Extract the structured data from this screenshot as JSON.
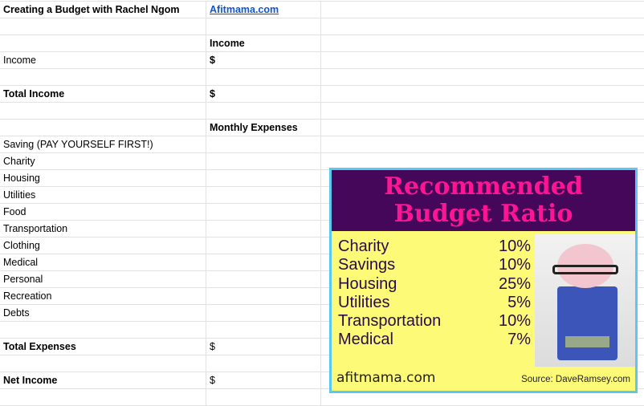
{
  "sheet": {
    "title": "Creating a Budget with Rachel Ngom",
    "link": "Afitmama.com",
    "income_header": "Income",
    "income_label": "Income",
    "currency": "$",
    "total_income_label": "Total Income",
    "expenses_header": "Monthly Expenses",
    "expenses": [
      "Saving (PAY YOURSELF FIRST!)",
      "Charity",
      "Housing",
      "Utilities",
      "Food",
      "Transportation",
      "Clothing",
      "Medical",
      "Personal",
      "Recreation",
      "Debts"
    ],
    "total_expenses_label": "Total Expenses",
    "net_income_label": "Net Income"
  },
  "poster": {
    "title_line1": "Recommended",
    "title_line2": "Budget Ratio",
    "ratios": [
      {
        "label": "Charity",
        "value": "10%"
      },
      {
        "label": "Savings",
        "value": "10%"
      },
      {
        "label": "Housing",
        "value": "25%"
      },
      {
        "label": "Utilities",
        "value": "5%"
      },
      {
        "label": "Transportation",
        "value": "10%"
      },
      {
        "label": "Medical",
        "value": "7%"
      }
    ],
    "logo": "afitmama.com",
    "source": "Source: DaveRamsey.com",
    "colors": {
      "header_bg": "#45075a",
      "title": "#ff1493",
      "body_bg": "#fdfa78",
      "border": "#5bc8f0"
    }
  }
}
